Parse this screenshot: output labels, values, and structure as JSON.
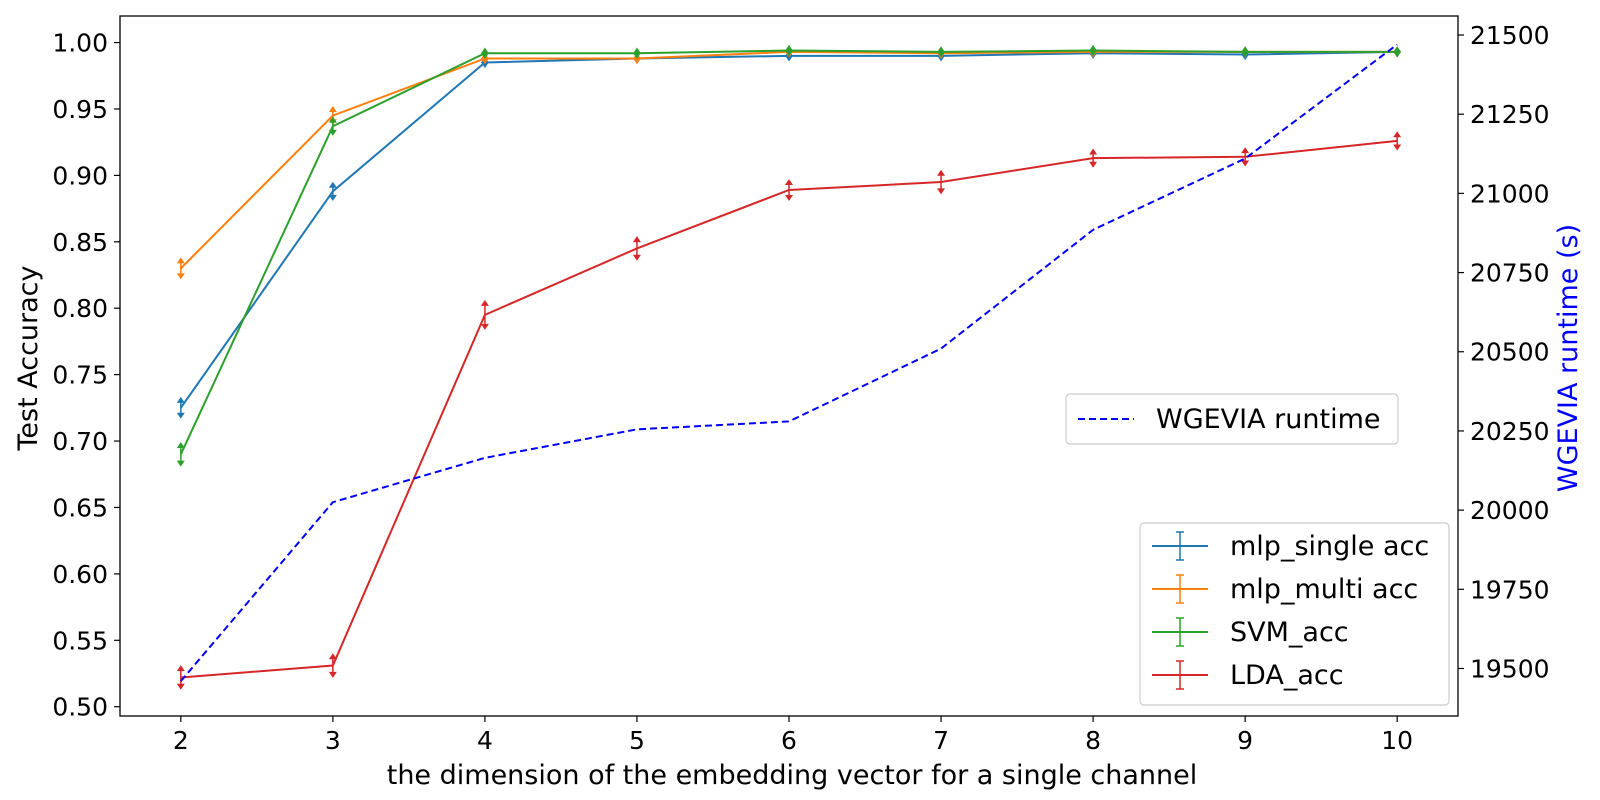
{
  "chart_data": {
    "type": "line",
    "title": "",
    "xlabel": "the dimension of the embedding vector for a single channel",
    "ylabel": "Test Accuracy",
    "y2label": "WGEVIA runtime (s)",
    "x": [
      2,
      3,
      4,
      5,
      6,
      7,
      8,
      9,
      10
    ],
    "x_ticks": [
      2,
      3,
      4,
      5,
      6,
      7,
      8,
      9,
      10
    ],
    "xlim": [
      1.6,
      10.4
    ],
    "ylim": [
      0.493,
      1.02
    ],
    "y_ticks": [
      0.5,
      0.55,
      0.6,
      0.65,
      0.7,
      0.75,
      0.8,
      0.85,
      0.9,
      0.95,
      1.0
    ],
    "y2lim": [
      19350,
      21560
    ],
    "y2_ticks": [
      19500,
      19750,
      20000,
      20250,
      20500,
      20750,
      21000,
      21250,
      21500
    ],
    "grid": false,
    "series": [
      {
        "name": "mlp_single acc",
        "axis": "left",
        "color": "#1f77b4",
        "values": [
          0.725,
          0.888,
          0.985,
          0.988,
          0.99,
          0.99,
          0.992,
          0.991,
          0.993
        ],
        "errors": [
          0.006,
          0.005,
          0.002,
          0.002,
          0.002,
          0.002,
          0.002,
          0.002,
          0.002
        ]
      },
      {
        "name": "mlp_multi acc",
        "axis": "left",
        "color": "#ff7f0e",
        "values": [
          0.83,
          0.945,
          0.988,
          0.988,
          0.993,
          0.992,
          0.993,
          0.993,
          0.993
        ],
        "errors": [
          0.006,
          0.005,
          0.002,
          0.002,
          0.002,
          0.002,
          0.002,
          0.002,
          0.002
        ]
      },
      {
        "name": "SVM_acc",
        "axis": "left",
        "color": "#2ca02c",
        "values": [
          0.69,
          0.937,
          0.992,
          0.992,
          0.994,
          0.993,
          0.994,
          0.993,
          0.993
        ],
        "errors": [
          0.007,
          0.005,
          0.002,
          0.002,
          0.002,
          0.002,
          0.002,
          0.002,
          0.002
        ]
      },
      {
        "name": "LDA_acc",
        "axis": "left",
        "color": "#d62728",
        "values": [
          0.522,
          0.531,
          0.795,
          0.845,
          0.889,
          0.895,
          0.913,
          0.914,
          0.926
        ],
        "errors": [
          0.007,
          0.007,
          0.009,
          0.007,
          0.006,
          0.007,
          0.005,
          0.005,
          0.005
        ]
      },
      {
        "name": "WGEVIA runtime",
        "axis": "right",
        "color": "#0000ff",
        "dashed": true,
        "values": [
          19460,
          20025,
          20165,
          20255,
          20280,
          20510,
          20885,
          21110,
          21470
        ]
      }
    ],
    "legends": [
      {
        "placement": "center-right",
        "entries": [
          "WGEVIA runtime"
        ]
      },
      {
        "placement": "lower-right",
        "entries": [
          "mlp_single acc",
          "mlp_multi acc",
          "SVM_acc",
          "LDA_acc"
        ]
      }
    ]
  }
}
